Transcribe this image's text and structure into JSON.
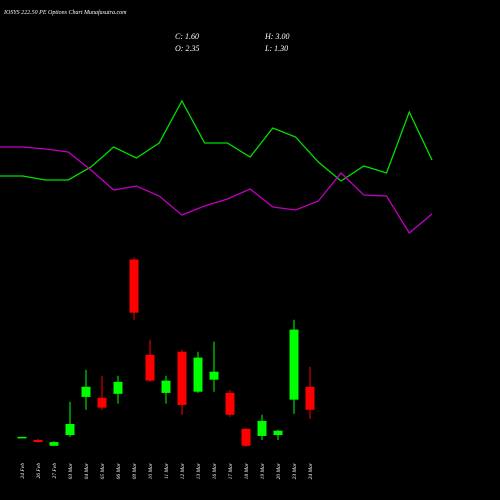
{
  "header": {
    "title": "IOSYS 222.50 PE Options Chart Munafasutra.com",
    "close": "C: 1.60",
    "high": "H: 3.00",
    "open": "O: 2.35",
    "low": "L: 1.30"
  },
  "chart_data": [
    {
      "type": "line",
      "ylim": [
        0,
        250
      ],
      "series": [
        {
          "name": "green-line",
          "color": "#00e000",
          "values": [
            74,
            74,
            70,
            70,
            83,
            103,
            92,
            107,
            149,
            107,
            107,
            93,
            122,
            113,
            88,
            69,
            84,
            77,
            138,
            90
          ]
        },
        {
          "name": "magenta-line",
          "color": "#c000c0",
          "values": [
            103,
            103,
            101,
            98,
            80,
            60,
            64,
            54,
            35,
            44,
            51,
            61,
            43,
            40,
            49,
            77,
            55,
            54,
            17,
            36
          ]
        }
      ]
    },
    {
      "type": "candlestick",
      "ylim": [
        0,
        6.8
      ],
      "up_color": "#00ff00",
      "down_color": "#ff0000",
      "categories": [
        "24 Feb",
        "26 Feb",
        "27 Feb",
        "03 Mar",
        "04 Mar",
        "05 Mar",
        "06 Mar",
        "09 Mar",
        "10 Mar",
        "11 Mar",
        "12 Mar",
        "13 Mar",
        "16 Mar",
        "17 Mar",
        "18 Mar",
        "19 Mar",
        "20 Mar",
        "23 Mar",
        "24 Mar"
      ],
      "open": [
        0.7,
        0.62,
        0.43,
        0.78,
        2.02,
        1.99,
        2.12,
        6.49,
        3.39,
        2.15,
        3.49,
        2.19,
        2.58,
        2.15,
        0.98,
        0.75,
        0.78,
        1.93,
        2.35
      ],
      "high": [
        0.72,
        0.65,
        0.58,
        1.86,
        2.9,
        2.7,
        2.71,
        6.56,
        3.88,
        2.71,
        3.56,
        3.49,
        3.82,
        2.25,
        1.01,
        1.44,
        0.95,
        4.53,
        3.0
      ],
      "low": [
        0.7,
        0.55,
        0.43,
        0.72,
        1.6,
        1.6,
        1.8,
        4.53,
        2.51,
        1.8,
        1.44,
        2.15,
        2.19,
        1.37,
        0.39,
        0.62,
        0.62,
        1.47,
        1.3
      ],
      "close": [
        0.72,
        0.55,
        0.55,
        1.14,
        2.35,
        1.67,
        2.51,
        4.76,
        2.55,
        2.55,
        1.76,
        3.3,
        2.84,
        1.44,
        0.43,
        1.24,
        0.92,
        4.21,
        1.6
      ]
    }
  ]
}
